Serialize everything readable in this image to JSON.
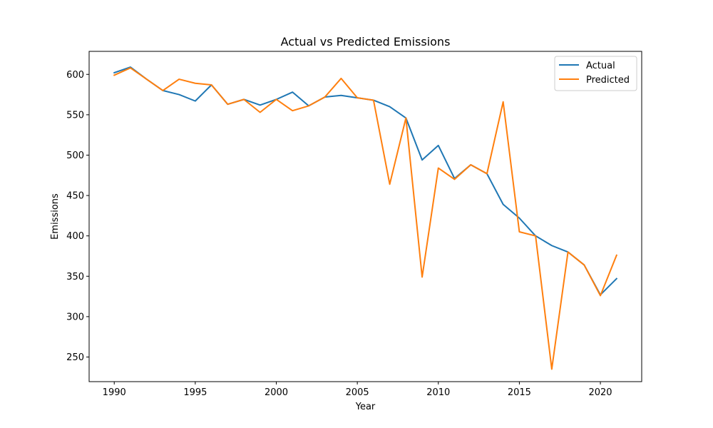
{
  "chart_data": {
    "type": "line",
    "title": "Actual vs Predicted Emissions",
    "xlabel": "Year",
    "ylabel": "Emissions",
    "xlim": [
      1988.45,
      2022.55
    ],
    "ylim": [
      219.5,
      628.5
    ],
    "xticks": [
      1990,
      1995,
      2000,
      2005,
      2010,
      2015,
      2020
    ],
    "yticks": [
      250,
      300,
      350,
      400,
      450,
      500,
      550,
      600
    ],
    "grid": false,
    "legend_position": "top-right",
    "x": [
      1990,
      1991,
      1992,
      1993,
      1994,
      1995,
      1996,
      1997,
      1998,
      1999,
      2000,
      2001,
      2002,
      2003,
      2004,
      2005,
      2006,
      2007,
      2008,
      2009,
      2010,
      2011,
      2012,
      2013,
      2014,
      2015,
      2016,
      2017,
      2018,
      2019,
      2020,
      2021
    ],
    "series": [
      {
        "name": "Actual",
        "color": "#1f77b4",
        "values": [
          602,
          609,
          594,
          580,
          575,
          567,
          587,
          563,
          569,
          562,
          569,
          578,
          561,
          572,
          574,
          571,
          568,
          560,
          546,
          494,
          512,
          471,
          488,
          477,
          439,
          422,
          400,
          388,
          380,
          364,
          327,
          347
        ]
      },
      {
        "name": "Predicted",
        "color": "#ff7f0e",
        "values": [
          599,
          608,
          594,
          580,
          594,
          589,
          587,
          563,
          569,
          553,
          569,
          555,
          561,
          572,
          595,
          571,
          568,
          464,
          546,
          349,
          484,
          470,
          488,
          477,
          566,
          405,
          400,
          235,
          380,
          364,
          326,
          376
        ]
      }
    ]
  }
}
